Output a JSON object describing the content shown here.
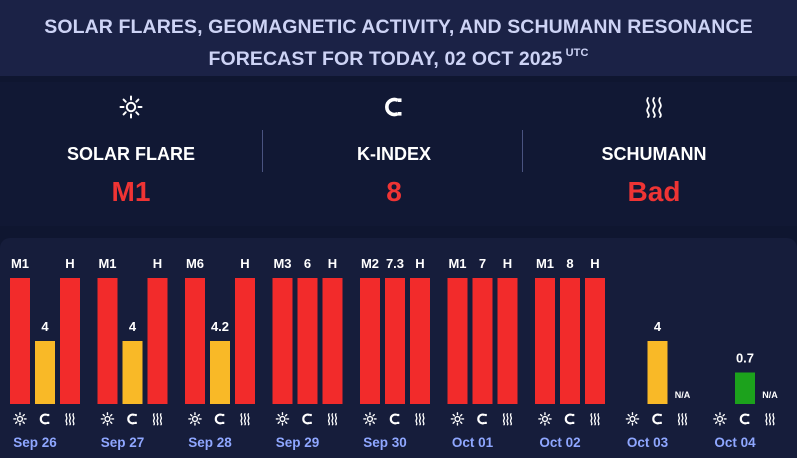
{
  "header": {
    "line1": "SOLAR FLARES, GEOMAGNETIC ACTIVITY, AND SCHUMANN RESONANCE",
    "line2": "FORECAST FOR TODAY, 02 OCT 2025",
    "tz": "UTC"
  },
  "summary": {
    "solar": {
      "label": "SOLAR FLARE",
      "value": "M1",
      "icon": "sun-icon"
    },
    "kindex": {
      "label": "K-INDEX",
      "value": "8",
      "icon": "magnet-icon"
    },
    "schumann": {
      "label": "SCHUMANN",
      "value": "Bad",
      "icon": "waves-icon"
    }
  },
  "colors": {
    "red": "#f22b2b",
    "yellow": "#f9b927",
    "green": "#1ca21c",
    "value_red": "#ef3434",
    "date_blue": "#8fa7ff"
  },
  "chart_data": {
    "type": "bar",
    "categories": [
      "Sep 26",
      "Sep 27",
      "Sep 28",
      "Sep 29",
      "Sep 30",
      "Oct 01",
      "Oct 02",
      "Oct 03",
      "Oct 04"
    ],
    "series": [
      {
        "icon": "sun-icon",
        "labels": [
          "M1",
          "M1",
          "M6",
          "M3",
          "M2",
          "M1",
          "M1",
          "",
          ""
        ],
        "levels": [
          1,
          1,
          1,
          1,
          1,
          1,
          1,
          null,
          null
        ],
        "colors": [
          "red",
          "red",
          "red",
          "red",
          "red",
          "red",
          "red",
          null,
          null
        ]
      },
      {
        "icon": "magnet-icon",
        "labels": [
          "4",
          "4",
          "4.2",
          "6",
          "7.3",
          "7",
          "8",
          "4",
          "0.7"
        ],
        "levels": [
          0.5,
          0.5,
          0.5,
          1,
          1,
          1,
          1,
          0.5,
          0.25
        ],
        "colors": [
          "yellow",
          "yellow",
          "yellow",
          "red",
          "red",
          "red",
          "red",
          "yellow",
          "green"
        ]
      },
      {
        "icon": "waves-icon",
        "labels": [
          "H",
          "H",
          "H",
          "H",
          "H",
          "H",
          "H",
          "N/A",
          "N/A"
        ],
        "levels": [
          1,
          1,
          1,
          1,
          1,
          1,
          1,
          null,
          null
        ],
        "colors": [
          "red",
          "red",
          "red",
          "red",
          "red",
          "red",
          "red",
          null,
          null
        ]
      }
    ],
    "na_label": "N/A"
  }
}
